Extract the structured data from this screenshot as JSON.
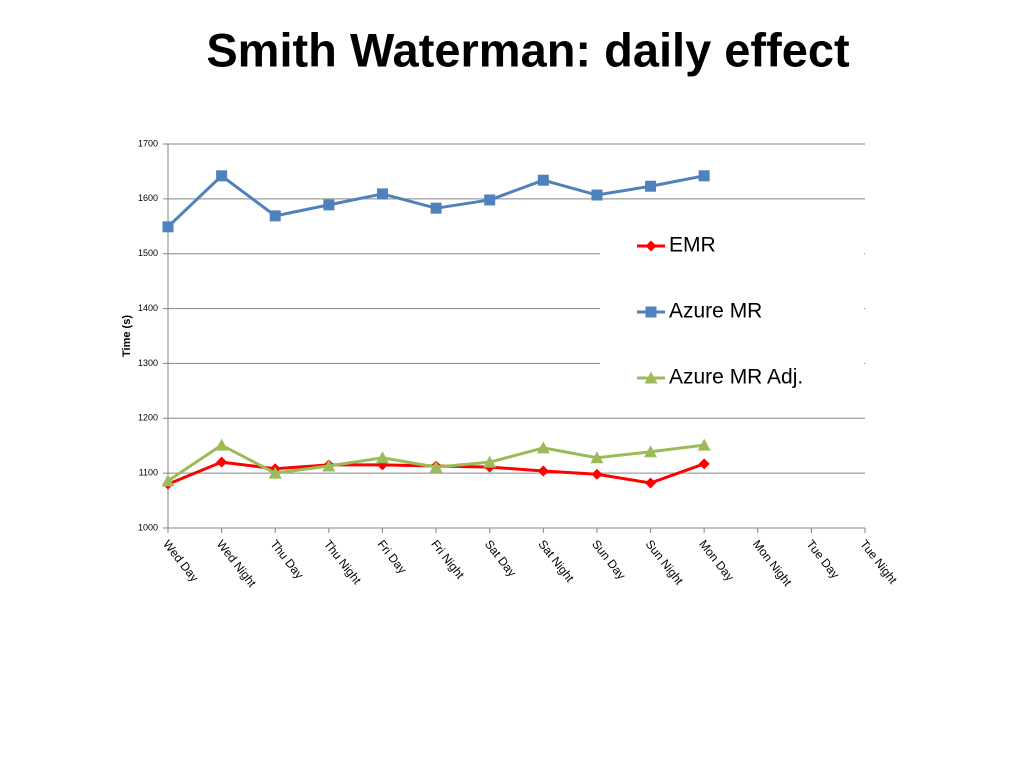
{
  "chart_data": {
    "type": "line",
    "title": "Smith Waterman: daily effect",
    "y_label": "Time (s)",
    "categories": [
      "Wed Day",
      "Wed Night",
      "Thu Day",
      "Thu Night",
      "Fri Day",
      "Fri Night",
      "Sat Day",
      "Sat Night",
      "Sun Day",
      "Sun Night",
      "Mon Day",
      "Mon Night",
      "Tue Day",
      "Tue Night"
    ],
    "series": [
      {
        "name": "EMR",
        "color": "#ff0000",
        "marker": "diamond",
        "values": [
          1080,
          1120,
          1108,
          1115,
          1115,
          1113,
          1111,
          1104,
          1098,
          1082,
          1117,
          null,
          null,
          null
        ]
      },
      {
        "name": "Azure MR",
        "color": "#4f81bd",
        "marker": "square",
        "values": [
          1549,
          1642,
          1569,
          1589,
          1609,
          1583,
          1598,
          1634,
          1607,
          1623,
          1642,
          null,
          null,
          null
        ]
      },
      {
        "name": "Azure MR Adj.",
        "color": "#9bbb59",
        "marker": "triangle",
        "values": [
          1086,
          1151,
          1100,
          1113,
          1128,
          1111,
          1120,
          1146,
          1128,
          1139,
          1151,
          null,
          null,
          null
        ]
      }
    ],
    "ylim": [
      1000,
      1700
    ],
    "yticks": [
      1000,
      1100,
      1200,
      1300,
      1400,
      1500,
      1600,
      1700
    ],
    "grid": true,
    "legend": "right"
  }
}
